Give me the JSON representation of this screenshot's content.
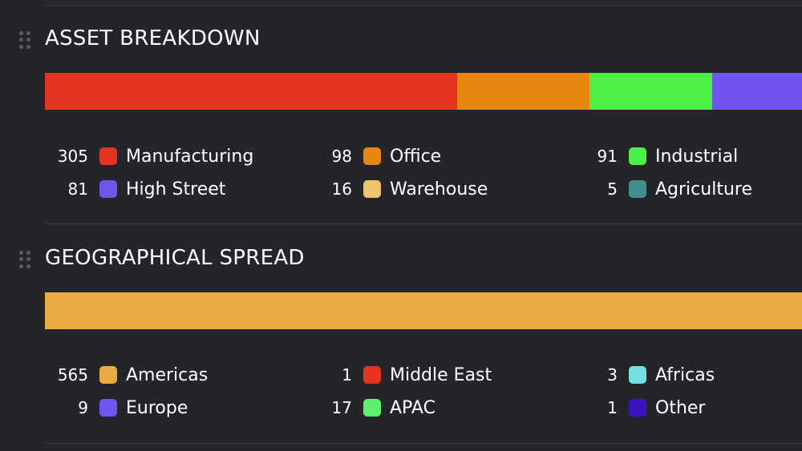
{
  "chart_data": [
    {
      "type": "stacked-bar",
      "title": "ASSET BREAKDOWN",
      "categories": [
        "Manufacturing",
        "Office",
        "Industrial",
        "High Street",
        "Warehouse",
        "Agriculture"
      ],
      "values": [
        305,
        98,
        91,
        81,
        16,
        5
      ],
      "colors": [
        "#e5341d",
        "#e8870f",
        "#4cf044",
        "#7254ee",
        "#f0c46e",
        "#3f8f8c"
      ],
      "legend_order": [
        0,
        3,
        1,
        4,
        2,
        5
      ]
    },
    {
      "type": "stacked-bar",
      "title": "GEOGRAPHICAL SPREAD",
      "categories": [
        "Americas",
        "APAC",
        "Europe",
        "Africas",
        "Middle East",
        "Other"
      ],
      "values": [
        565,
        17,
        9,
        3,
        1,
        1
      ],
      "colors": [
        "#e9a944",
        "#5ff06e",
        "#7254ee",
        "#71e0e0",
        "#e5341d",
        "#3a14c2"
      ],
      "legend_order": [
        0,
        2,
        4,
        1,
        3,
        5
      ]
    }
  ]
}
